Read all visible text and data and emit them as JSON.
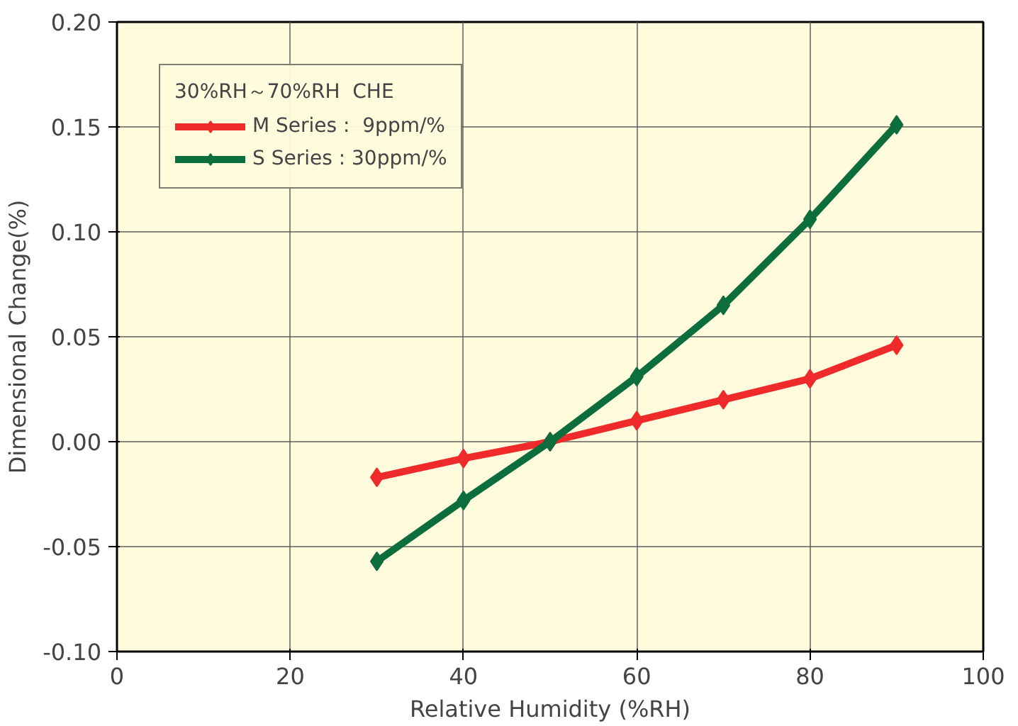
{
  "chart_data": {
    "type": "line",
    "xlabel": "Relative Humidity (%RH)",
    "ylabel": "Dimensional Change(%)",
    "legend_title": "30%RH～70%RH  CHE",
    "x": [
      30,
      40,
      50,
      60,
      70,
      80,
      90
    ],
    "series": [
      {
        "name": "M Series :  9ppm/%",
        "color": "#ee2a2a",
        "values": [
          -0.017,
          -0.008,
          0.0,
          0.01,
          0.02,
          0.03,
          0.046
        ]
      },
      {
        "name": "S Series : 30ppm/%",
        "color": "#0b6e3c",
        "values": [
          -0.057,
          -0.028,
          0.0,
          0.031,
          0.065,
          0.106,
          0.151
        ]
      }
    ],
    "xlim": [
      0,
      100
    ],
    "xticks": [
      0,
      20,
      40,
      60,
      80,
      100
    ],
    "ylim": [
      -0.1,
      0.2
    ],
    "yticks": [
      {
        "value": -0.1,
        "label": "-0.10"
      },
      {
        "value": -0.05,
        "label": "-0.05"
      },
      {
        "value": 0,
        "label": "0.00"
      },
      {
        "value": 0.05,
        "label": "0.05"
      },
      {
        "value": 0.1,
        "label": "0.10"
      },
      {
        "value": 0.15,
        "label": "0.15"
      },
      {
        "value": 0.2,
        "label": "0.20"
      }
    ],
    "grid": true,
    "legend": "top left",
    "marker": "diamond",
    "line_style": "solid"
  }
}
